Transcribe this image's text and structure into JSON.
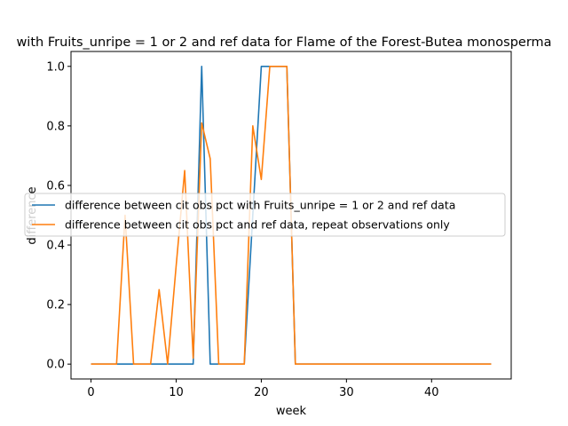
{
  "chart_data": {
    "type": "line",
    "title": "with Fruits_unripe = 1 or 2 and ref data for Flame of the Forest-Butea monosperma",
    "xlabel": "week",
    "ylabel": "difference",
    "xlim": [
      -2.35,
      49.35
    ],
    "ylim": [
      -0.05,
      1.05
    ],
    "xticks": [
      0,
      10,
      20,
      30,
      40
    ],
    "yticks": [
      0.0,
      0.2,
      0.4,
      0.6,
      0.8,
      1.0
    ],
    "ytick_labels": [
      "0.0",
      "0.2",
      "0.4",
      "0.6",
      "0.8",
      "1.0"
    ],
    "grid": false,
    "legend_position": "center-right",
    "series": [
      {
        "name": "difference between cit obs pct with Fruits_unripe = 1 or 2 and ref data",
        "color": "#1f77b4",
        "x": [
          0,
          1,
          2,
          3,
          4,
          5,
          6,
          7,
          8,
          9,
          10,
          11,
          12,
          13,
          14,
          15,
          16,
          17,
          18,
          19,
          20,
          21,
          22,
          23,
          24,
          25,
          26,
          27,
          28,
          29,
          30,
          31,
          32,
          33,
          34,
          35,
          36,
          37,
          38,
          39,
          40,
          41,
          42,
          43,
          44,
          45,
          46,
          47
        ],
        "y": [
          0,
          0,
          0,
          0,
          0,
          0,
          0,
          0,
          0,
          0,
          0,
          0,
          0,
          1.0,
          0,
          0,
          0,
          0,
          0,
          0.5,
          1.0,
          1.0,
          1.0,
          1.0,
          0,
          0,
          0,
          0,
          0,
          0,
          0,
          0,
          0,
          0,
          0,
          0,
          0,
          0,
          0,
          0,
          0,
          0,
          0,
          0,
          0,
          0,
          0,
          0
        ]
      },
      {
        "name": "difference between cit obs pct and ref data, repeat observations only",
        "color": "#ff7f0e",
        "x": [
          0,
          1,
          2,
          3,
          4,
          5,
          6,
          7,
          8,
          9,
          10,
          11,
          12,
          13,
          14,
          15,
          16,
          17,
          18,
          19,
          20,
          21,
          22,
          23,
          24,
          25,
          26,
          27,
          28,
          29,
          30,
          31,
          32,
          33,
          34,
          35,
          36,
          37,
          38,
          39,
          40,
          41,
          42,
          43,
          44,
          45,
          46,
          47
        ],
        "y": [
          0,
          0,
          0,
          0,
          0.5,
          0,
          0,
          0,
          0.25,
          0,
          0.33,
          0.65,
          0.02,
          0.81,
          0.69,
          0,
          0,
          0,
          0,
          0.8,
          0.62,
          1.0,
          1.0,
          1.0,
          0,
          0,
          0,
          0,
          0,
          0,
          0,
          0,
          0,
          0,
          0,
          0,
          0,
          0,
          0,
          0,
          0,
          0,
          0,
          0,
          0,
          0,
          0,
          0
        ]
      }
    ]
  }
}
